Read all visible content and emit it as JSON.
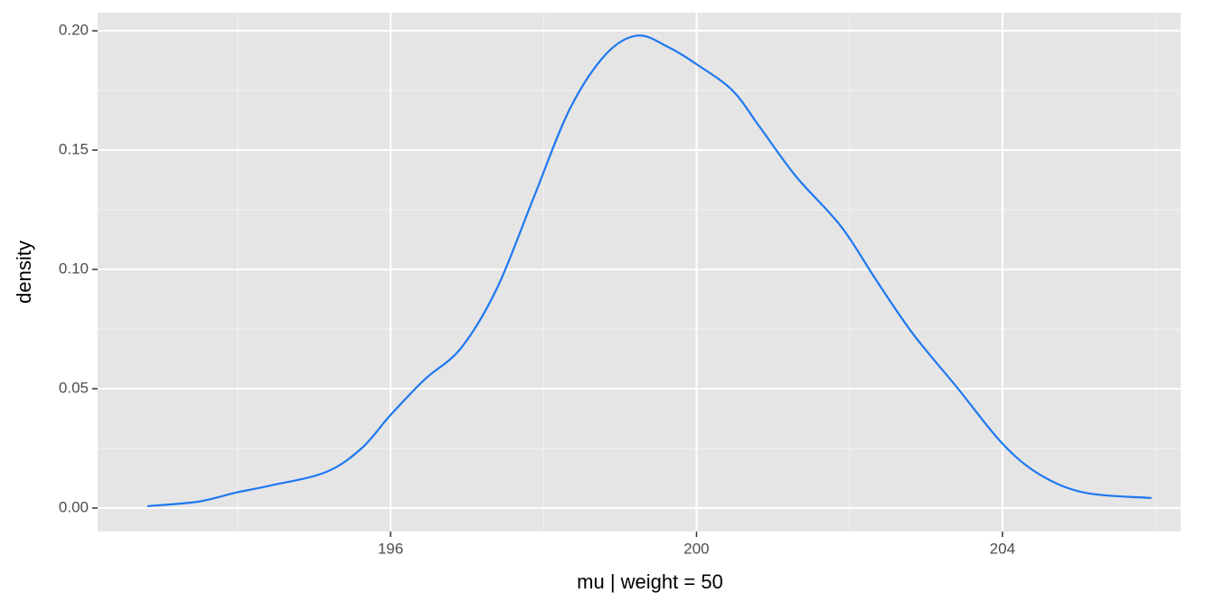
{
  "chart_data": {
    "type": "line",
    "x_label": "mu | weight = 50",
    "y_label": "density",
    "x": [
      192.82,
      193.49,
      193.97,
      194.44,
      195.15,
      195.62,
      196,
      196.45,
      196.92,
      197.39,
      197.87,
      198.34,
      198.81,
      199.23,
      199.64,
      200,
      200.47,
      200.82,
      201.3,
      201.89,
      202.36,
      202.83,
      203.42,
      204,
      204.49,
      205.08,
      205.95
    ],
    "series": [
      {
        "color": "#1f78f0",
        "values": [
          0.0008,
          0.0027,
          0.0064,
          0.0095,
          0.015,
          0.025,
          0.039,
          0.054,
          0.067,
          0.092,
          0.13,
          0.167,
          0.19,
          0.198,
          0.193,
          0.186,
          0.175,
          0.16,
          0.139,
          0.118,
          0.095,
          0.073,
          0.05,
          0.027,
          0.014,
          0.0064,
          0.0042
        ]
      }
    ],
    "xlim": [
      192.17,
      206.33
    ],
    "ylim": [
      -0.00985,
      0.2076
    ],
    "xticks": [
      196,
      200,
      204
    ],
    "yticks": [
      {
        "value": 0,
        "label": "0.00"
      },
      {
        "value": 0.05,
        "label": "0.05"
      },
      {
        "value": 0.1,
        "label": "0.10"
      },
      {
        "value": 0.15,
        "label": "0.15"
      },
      {
        "value": 0.2,
        "label": "0.20"
      }
    ],
    "x_minor_ticks": [
      194,
      198,
      202,
      206
    ],
    "y_minor_ticks": [
      0.025,
      0.075,
      0.125,
      0.175
    ],
    "grid": true
  }
}
